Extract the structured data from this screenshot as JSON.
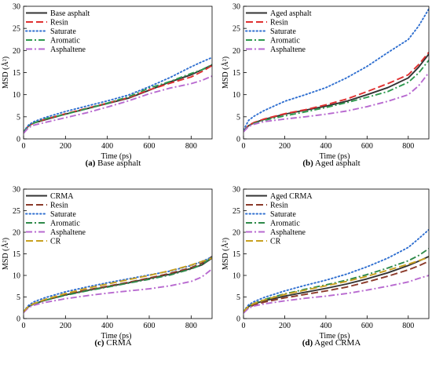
{
  "chart_data": [
    {
      "type": "line",
      "panel_label": "(a)",
      "caption": "Base asphalt",
      "xlabel": "Time (ps)",
      "ylabel": "MSD (Å²)",
      "xlim": [
        0,
        900
      ],
      "ylim": [
        0,
        30
      ],
      "xticks": [
        "0",
        "200",
        "400",
        "600",
        "800"
      ],
      "yticks": [
        "0",
        "5",
        "10",
        "15",
        "20",
        "25",
        "30"
      ],
      "legend_position": "top-left",
      "grid": false,
      "x": [
        0,
        25,
        50,
        100,
        200,
        300,
        400,
        500,
        600,
        700,
        800,
        850,
        900
      ],
      "series": [
        {
          "name": "Base asphalt",
          "color": "#333333",
          "dash": "solid",
          "values": [
            1.6,
            3.0,
            3.6,
            4.3,
            5.6,
            6.8,
            8.0,
            9.2,
            11.0,
            12.9,
            14.5,
            15.6,
            16.7
          ]
        },
        {
          "name": "Resin",
          "color": "#e03030",
          "dash": "dash",
          "values": [
            1.6,
            3.0,
            3.6,
            4.4,
            5.7,
            6.9,
            8.1,
            9.3,
            11.1,
            12.6,
            14.0,
            15.2,
            16.6
          ]
        },
        {
          "name": "Saturate",
          "color": "#2f6fd0",
          "dash": "dot",
          "values": [
            1.7,
            3.2,
            3.9,
            4.8,
            6.2,
            7.4,
            8.6,
            9.9,
            11.8,
            13.9,
            16.3,
            17.4,
            18.4
          ]
        },
        {
          "name": "Aromatic",
          "color": "#2e9a4f",
          "dash": "dashdot",
          "values": [
            1.5,
            2.9,
            3.6,
            4.5,
            5.6,
            6.8,
            8.1,
            9.5,
            11.5,
            13.0,
            14.8,
            15.6,
            16.8
          ]
        },
        {
          "name": "Asphaltene",
          "color": "#b86ad0",
          "dash": "dashdot",
          "values": [
            1.3,
            2.6,
            3.1,
            3.7,
            4.8,
            5.9,
            7.2,
            8.6,
            10.2,
            11.5,
            12.5,
            13.2,
            14.2
          ]
        }
      ]
    },
    {
      "type": "line",
      "panel_label": "(b)",
      "caption": "Aged asphalt",
      "xlabel": "Time (ps)",
      "ylabel": "MSD (Å²)",
      "xlim": [
        0,
        900
      ],
      "ylim": [
        0,
        30
      ],
      "xticks": [
        "0",
        "200",
        "400",
        "600",
        "800"
      ],
      "yticks": [
        "0",
        "5",
        "10",
        "15",
        "20",
        "25",
        "30"
      ],
      "legend_position": "top-left",
      "grid": false,
      "x": [
        0,
        25,
        50,
        100,
        200,
        300,
        400,
        500,
        600,
        700,
        800,
        850,
        900
      ],
      "series": [
        {
          "name": "Aged asphalt",
          "color": "#333333",
          "dash": "solid",
          "values": [
            1.8,
            3.0,
            3.6,
            4.4,
            5.6,
            6.5,
            7.4,
            8.5,
            10.0,
            11.6,
            13.8,
            16.2,
            19.2
          ]
        },
        {
          "name": "Resin",
          "color": "#e03030",
          "dash": "dash",
          "values": [
            1.8,
            3.1,
            3.7,
            4.5,
            5.7,
            6.6,
            7.7,
            9.0,
            10.7,
            12.5,
            14.5,
            16.8,
            19.6
          ]
        },
        {
          "name": "Saturate",
          "color": "#2f6fd0",
          "dash": "dot",
          "values": [
            2.0,
            4.2,
            5.1,
            6.4,
            8.5,
            10.0,
            11.6,
            13.8,
            16.4,
            19.5,
            22.5,
            25.5,
            29.4
          ]
        },
        {
          "name": "Aromatic",
          "color": "#2e9a4f",
          "dash": "dashdot",
          "values": [
            1.7,
            3.0,
            3.5,
            4.2,
            5.2,
            6.1,
            7.1,
            8.2,
            9.4,
            10.7,
            12.8,
            14.9,
            17.8
          ]
        },
        {
          "name": "Asphaltene",
          "color": "#b86ad0",
          "dash": "dashdot",
          "values": [
            1.6,
            2.8,
            3.3,
            3.9,
            4.5,
            5.0,
            5.6,
            6.3,
            7.3,
            8.5,
            10.0,
            12.0,
            15.0
          ]
        }
      ]
    },
    {
      "type": "line",
      "panel_label": "(c)",
      "caption": "CRMA",
      "xlabel": "Time (ps)",
      "ylabel": "MSD (Å²)",
      "xlim": [
        0,
        900
      ],
      "ylim": [
        0,
        30
      ],
      "xticks": [
        "0",
        "200",
        "400",
        "600",
        "800"
      ],
      "yticks": [
        "0",
        "5",
        "10",
        "15",
        "20",
        "25",
        "30"
      ],
      "legend_position": "top-left",
      "grid": false,
      "x": [
        0,
        25,
        50,
        100,
        200,
        300,
        400,
        500,
        600,
        700,
        800,
        850,
        900
      ],
      "series": [
        {
          "name": "CRMA",
          "color": "#333333",
          "dash": "solid",
          "values": [
            1.6,
            2.8,
            3.4,
            4.2,
            5.5,
            6.5,
            7.4,
            8.3,
            9.3,
            10.3,
            11.6,
            12.4,
            14.0
          ]
        },
        {
          "name": "Resin",
          "color": "#8b3a2a",
          "dash": "dash",
          "values": [
            1.6,
            2.9,
            3.5,
            4.3,
            5.6,
            6.6,
            7.5,
            8.4,
            9.4,
            10.5,
            11.8,
            12.8,
            14.4
          ]
        },
        {
          "name": "Saturate",
          "color": "#2f6fd0",
          "dash": "dot",
          "values": [
            1.7,
            3.1,
            3.9,
            4.8,
            6.2,
            7.3,
            8.3,
            9.2,
            10.1,
            11.0,
            12.3,
            13.2,
            14.3
          ]
        },
        {
          "name": "Aromatic",
          "color": "#2e8a4a",
          "dash": "dashdot",
          "values": [
            1.6,
            2.8,
            3.4,
            4.2,
            5.4,
            6.4,
            7.3,
            8.2,
            9.1,
            10.1,
            11.5,
            12.5,
            14.2
          ]
        },
        {
          "name": "Asphaltene",
          "color": "#b86ad0",
          "dash": "dashdot",
          "values": [
            1.4,
            2.6,
            3.1,
            3.7,
            4.6,
            5.3,
            5.9,
            6.4,
            6.9,
            7.6,
            8.6,
            9.6,
            11.5
          ]
        },
        {
          "name": "CR",
          "color": "#c8a020",
          "dash": "dash",
          "values": [
            1.6,
            2.9,
            3.5,
            4.4,
            5.8,
            7.0,
            8.0,
            9.0,
            10.0,
            11.1,
            12.4,
            13.2,
            14.0
          ]
        }
      ]
    },
    {
      "type": "line",
      "panel_label": "(d)",
      "caption": "Aged CRMA",
      "xlabel": "Time (ps)",
      "ylabel": "MSD (Å²)",
      "xlim": [
        0,
        900
      ],
      "ylim": [
        0,
        30
      ],
      "xticks": [
        "0",
        "200",
        "400",
        "600",
        "800"
      ],
      "yticks": [
        "0",
        "5",
        "10",
        "15",
        "20",
        "25",
        "30"
      ],
      "legend_position": "top-left",
      "grid": false,
      "x": [
        0,
        25,
        50,
        100,
        200,
        300,
        400,
        500,
        600,
        700,
        800,
        850,
        900
      ],
      "series": [
        {
          "name": "Aged CRMA",
          "color": "#333333",
          "dash": "solid",
          "values": [
            1.5,
            2.8,
            3.4,
            4.1,
            5.2,
            6.1,
            7.0,
            8.0,
            9.2,
            10.6,
            12.3,
            13.3,
            14.4
          ]
        },
        {
          "name": "Resin",
          "color": "#8b3a2a",
          "dash": "dash",
          "values": [
            1.4,
            2.6,
            3.1,
            3.8,
            4.8,
            5.6,
            6.4,
            7.3,
            8.5,
            9.8,
            11.3,
            12.2,
            13.3
          ]
        },
        {
          "name": "Saturate",
          "color": "#2f6fd0",
          "dash": "dot",
          "values": [
            1.7,
            3.2,
            3.9,
            4.9,
            6.4,
            7.7,
            8.9,
            10.3,
            12.0,
            14.0,
            16.5,
            18.5,
            20.6
          ]
        },
        {
          "name": "Aromatic",
          "color": "#2e8a4a",
          "dash": "dashdot",
          "values": [
            1.6,
            2.9,
            3.5,
            4.4,
            5.7,
            6.8,
            7.8,
            8.9,
            10.2,
            11.7,
            13.4,
            14.6,
            16.2
          ]
        },
        {
          "name": "Asphaltene",
          "color": "#b86ad0",
          "dash": "dashdot",
          "values": [
            1.3,
            2.4,
            2.9,
            3.4,
            4.1,
            4.7,
            5.2,
            5.8,
            6.6,
            7.5,
            8.5,
            9.3,
            10.0
          ]
        },
        {
          "name": "CR",
          "color": "#c8a020",
          "dash": "dash",
          "values": [
            1.6,
            2.9,
            3.5,
            4.3,
            5.6,
            6.6,
            7.6,
            8.6,
            9.8,
            11.2,
            12.6,
            13.4,
            14.2
          ]
        }
      ]
    }
  ]
}
